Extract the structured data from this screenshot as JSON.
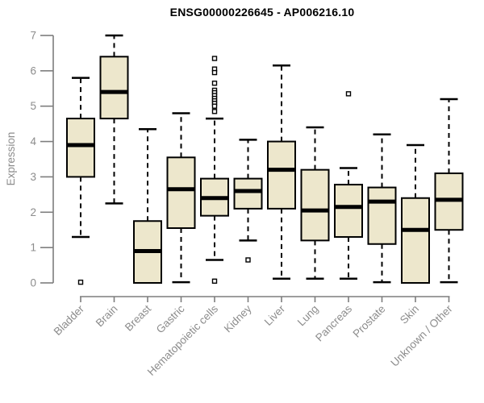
{
  "chart_data": {
    "type": "boxplot",
    "title": "ENSG00000226645 - AP006216.10",
    "ylabel": "Expression",
    "ylim": [
      0,
      7
    ],
    "yticks": [
      0,
      1,
      2,
      3,
      4,
      5,
      6,
      7
    ],
    "grid": false,
    "legend": "none",
    "categories": [
      "Bladder",
      "Brain",
      "Breast",
      "Gastric",
      "Hematopoietic cells",
      "Kidney",
      "Liver",
      "Lung",
      "Pancreas",
      "Prostate",
      "Skin",
      "Unknown / Other"
    ],
    "boxes": [
      {
        "category": "Bladder",
        "whisker_low": 1.3,
        "q1": 3.0,
        "median": 3.9,
        "q3": 4.65,
        "whisker_high": 5.8,
        "outliers": [
          0.02
        ]
      },
      {
        "category": "Brain",
        "whisker_low": 2.25,
        "q1": 4.65,
        "median": 5.4,
        "q3": 6.4,
        "whisker_high": 7.0,
        "outliers": []
      },
      {
        "category": "Breast",
        "whisker_low": 0.0,
        "q1": 0.0,
        "median": 0.9,
        "q3": 1.75,
        "whisker_high": 4.35,
        "outliers": []
      },
      {
        "category": "Gastric",
        "whisker_low": 0.02,
        "q1": 1.55,
        "median": 2.65,
        "q3": 3.55,
        "whisker_high": 4.8,
        "outliers": []
      },
      {
        "category": "Hematopoietic cells",
        "whisker_low": 0.65,
        "q1": 1.9,
        "median": 2.4,
        "q3": 2.95,
        "whisker_high": 4.65,
        "outliers": [
          6.35,
          6.05,
          5.95,
          5.65,
          5.45,
          5.38,
          5.3,
          5.22,
          5.15,
          5.08,
          5.0,
          4.85,
          0.05
        ]
      },
      {
        "category": "Kidney",
        "whisker_low": 1.2,
        "q1": 2.1,
        "median": 2.6,
        "q3": 2.95,
        "whisker_high": 4.05,
        "outliers": [
          0.65
        ]
      },
      {
        "category": "Liver",
        "whisker_low": 0.12,
        "q1": 2.1,
        "median": 3.2,
        "q3": 4.0,
        "whisker_high": 6.15,
        "outliers": []
      },
      {
        "category": "Lung",
        "whisker_low": 0.12,
        "q1": 1.2,
        "median": 2.05,
        "q3": 3.2,
        "whisker_high": 4.4,
        "outliers": []
      },
      {
        "category": "Pancreas",
        "whisker_low": 0.12,
        "q1": 1.3,
        "median": 2.15,
        "q3": 2.78,
        "whisker_high": 3.25,
        "outliers": [
          5.35
        ]
      },
      {
        "category": "Prostate",
        "whisker_low": 0.02,
        "q1": 1.1,
        "median": 2.3,
        "q3": 2.7,
        "whisker_high": 4.2,
        "outliers": []
      },
      {
        "category": "Skin",
        "whisker_low": 0.0,
        "q1": 0.0,
        "median": 1.5,
        "q3": 2.4,
        "whisker_high": 3.9,
        "outliers": []
      },
      {
        "category": "Unknown / Other",
        "whisker_low": 0.02,
        "q1": 1.5,
        "median": 2.35,
        "q3": 3.1,
        "whisker_high": 5.2,
        "outliers": []
      }
    ],
    "colors": {
      "box_fill": "#EDE7CC",
      "box_border": "#000000",
      "median": "#000000",
      "whisker": "#000000",
      "outlier_stroke": "#000000",
      "axis_line": "#7d7d7d",
      "tick_text": "#8c8c8c",
      "title_text": "#000000",
      "background": "#ffffff"
    }
  }
}
